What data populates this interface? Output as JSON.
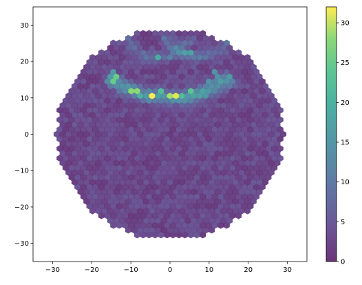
{
  "chart_data": {
    "type": "heatmap",
    "subtype": "hexbin",
    "title": "",
    "xlabel": "",
    "ylabel": "",
    "xlim": [
      -35,
      35
    ],
    "ylim": [
      -35,
      35
    ],
    "x_ticks": [
      -30,
      -20,
      -10,
      0,
      10,
      20,
      30
    ],
    "y_ticks": [
      -30,
      -20,
      -10,
      0,
      10,
      20,
      30
    ],
    "domain_radius": 29,
    "hex_size": 0.88,
    "colormap": "viridis",
    "alpha": 0.8,
    "colorbar": {
      "min": 0,
      "max": 32,
      "ticks": [
        0,
        5,
        10,
        15,
        20,
        25,
        30
      ]
    },
    "background_count": 3,
    "features": [
      {
        "label": "lower-arc",
        "center": [
          0,
          35
        ],
        "radius": 25,
        "angle_from": 230,
        "angle_to": 310,
        "peak": 14,
        "spread": 1.3
      },
      {
        "label": "upper-left-arc",
        "center": [
          -3,
          30
        ],
        "radius": 9,
        "angle_from": 200,
        "angle_to": 340,
        "peak": 6,
        "spread": 1.0
      },
      {
        "label": "upper-right-arc",
        "center": [
          7,
          30
        ],
        "radius": 9,
        "angle_from": 200,
        "angle_to": 340,
        "peak": 6,
        "spread": 1.0
      }
    ],
    "hotspots": [
      {
        "x": -4.5,
        "y": 10.5,
        "value": 32
      },
      {
        "x": 1,
        "y": 10.5,
        "value": 31
      },
      {
        "x": -0.5,
        "y": 10.5,
        "value": 29
      },
      {
        "x": -9,
        "y": 12,
        "value": 28
      },
      {
        "x": -14,
        "y": 15,
        "value": 25
      },
      {
        "x": 5,
        "y": 12,
        "value": 24
      },
      {
        "x": 3,
        "y": 10.5,
        "value": 22
      },
      {
        "x": -2,
        "y": 12,
        "value": 22
      },
      {
        "x": -7.5,
        "y": 10.5,
        "value": 20
      },
      {
        "x": -3,
        "y": 21,
        "value": 19
      },
      {
        "x": 4.5,
        "y": 22.5,
        "value": 17
      },
      {
        "x": -15,
        "y": 16.5,
        "value": 16
      },
      {
        "x": 10,
        "y": 14,
        "value": 14
      },
      {
        "x": 12,
        "y": 16.5,
        "value": 14
      }
    ]
  }
}
